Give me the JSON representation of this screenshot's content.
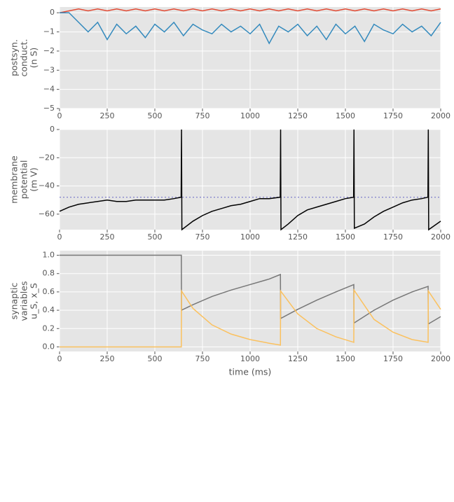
{
  "chart_data": [
    {
      "type": "line",
      "ylabel": [
        "postsyn.",
        "conduct.",
        "(n S)"
      ],
      "x": [
        0,
        50,
        100,
        150,
        200,
        250,
        300,
        350,
        400,
        450,
        500,
        550,
        600,
        650,
        700,
        750,
        800,
        850,
        900,
        950,
        1000,
        1050,
        1100,
        1150,
        1200,
        1250,
        1300,
        1350,
        1400,
        1450,
        1500,
        1550,
        1600,
        1650,
        1700,
        1750,
        1800,
        1850,
        1900,
        1950,
        2000
      ],
      "series": [
        {
          "color": "#e24a33",
          "values": [
            0,
            0.1,
            0.2,
            0.1,
            0.2,
            0.1,
            0.2,
            0.1,
            0.2,
            0.1,
            0.2,
            0.1,
            0.2,
            0.1,
            0.2,
            0.1,
            0.2,
            0.1,
            0.2,
            0.1,
            0.2,
            0.1,
            0.2,
            0.1,
            0.2,
            0.1,
            0.2,
            0.1,
            0.2,
            0.1,
            0.2,
            0.1,
            0.2,
            0.1,
            0.2,
            0.1,
            0.2,
            0.1,
            0.2,
            0.1,
            0.2
          ]
        },
        {
          "color": "#348abd",
          "values": [
            0,
            0,
            -0.5,
            -1.0,
            -0.5,
            -1.4,
            -0.6,
            -1.1,
            -0.7,
            -1.3,
            -0.6,
            -1.0,
            -0.5,
            -1.2,
            -0.6,
            -0.9,
            -1.1,
            -0.6,
            -1.0,
            -0.7,
            -1.1,
            -0.6,
            -1.6,
            -0.7,
            -1.0,
            -0.6,
            -1.2,
            -0.7,
            -1.4,
            -0.6,
            -1.1,
            -0.7,
            -1.5,
            -0.6,
            -0.9,
            -1.1,
            -0.6,
            -1.0,
            -0.7,
            -1.2,
            -0.5
          ]
        }
      ],
      "xlim": [
        0,
        2000
      ],
      "xticks": [
        0,
        250,
        500,
        750,
        1000,
        1250,
        1500,
        1750,
        2000
      ],
      "ylim": [
        -5,
        0.3
      ],
      "yticks": [
        {
          "value": -5,
          "label": "−5"
        },
        {
          "value": -4,
          "label": "−4"
        },
        {
          "value": -3,
          "label": "−3"
        },
        {
          "value": -2,
          "label": "−2"
        },
        {
          "value": -1,
          "label": "−1"
        },
        0
      ],
      "grid": true
    },
    {
      "type": "line",
      "ylabel": [
        "membrane",
        "potential",
        "(m V)"
      ],
      "x": [
        0,
        50,
        100,
        150,
        200,
        250,
        300,
        350,
        400,
        450,
        500,
        550,
        600,
        638,
        640,
        642,
        700,
        750,
        800,
        850,
        900,
        950,
        1000,
        1050,
        1100,
        1158,
        1160,
        1162,
        1200,
        1250,
        1300,
        1350,
        1400,
        1450,
        1500,
        1543,
        1545,
        1547,
        1600,
        1650,
        1700,
        1750,
        1800,
        1850,
        1900,
        1933,
        1935,
        1937,
        2000
      ],
      "series": [
        {
          "color": "#000000",
          "values": [
            -58,
            -55,
            -53,
            -52,
            -51,
            -50,
            -51,
            -51,
            -50,
            -50,
            -50,
            -50,
            -49,
            -48,
            0,
            -71,
            -65,
            -61,
            -58,
            -56,
            -54,
            -53,
            -51,
            -49,
            -49,
            -48,
            0,
            -71,
            -67,
            -61,
            -57,
            -55,
            -53,
            -51,
            -49,
            -48,
            0,
            -70,
            -67,
            -62,
            -58,
            -55,
            -52,
            -50,
            -49,
            -48,
            0,
            -71,
            -65
          ]
        }
      ],
      "hline": -48,
      "hline_color": "#8888cc",
      "xlim": [
        0,
        2000
      ],
      "xticks": [
        0,
        250,
        500,
        750,
        1000,
        1250,
        1500,
        1750,
        2000
      ],
      "ylim": [
        -71,
        0
      ],
      "yticks": [
        {
          "value": -60,
          "label": "−60"
        },
        {
          "value": -40,
          "label": "−40"
        },
        {
          "value": -20,
          "label": "−20"
        },
        0
      ],
      "grid": true
    },
    {
      "type": "line",
      "ylabel": [
        "synaptic",
        "variables",
        "u_S, x_S"
      ],
      "xlabel": "time (ms)",
      "x": [
        0,
        639,
        640,
        700,
        800,
        900,
        1000,
        1100,
        1159,
        1160,
        1250,
        1350,
        1450,
        1544,
        1545,
        1650,
        1750,
        1850,
        1934,
        1935,
        2000
      ],
      "series": [
        {
          "color": "#777777",
          "values": [
            1,
            1,
            0.4,
            0.46,
            0.55,
            0.62,
            0.68,
            0.74,
            0.79,
            0.31,
            0.41,
            0.51,
            0.6,
            0.68,
            0.26,
            0.4,
            0.51,
            0.6,
            0.66,
            0.25,
            0.33
          ]
        },
        {
          "color": "#fbc15e",
          "values": [
            0,
            0,
            0.61,
            0.42,
            0.24,
            0.14,
            0.08,
            0.04,
            0.02,
            0.61,
            0.36,
            0.2,
            0.11,
            0.05,
            0.62,
            0.3,
            0.16,
            0.08,
            0.05,
            0.61,
            0.41
          ]
        }
      ],
      "xlim": [
        0,
        2000
      ],
      "xticks": [
        0,
        250,
        500,
        750,
        1000,
        1250,
        1500,
        1750,
        2000
      ],
      "ylim": [
        -0.05,
        1.05
      ],
      "yticks": [
        {
          "value": 0,
          "label": "0.0"
        },
        {
          "value": 0.2,
          "label": "0.2"
        },
        {
          "value": 0.4,
          "label": "0.4"
        },
        {
          "value": 0.6,
          "label": "0.6"
        },
        {
          "value": 0.8,
          "label": "0.8"
        },
        {
          "value": 1,
          "label": "1.0"
        }
      ],
      "grid": true
    }
  ]
}
